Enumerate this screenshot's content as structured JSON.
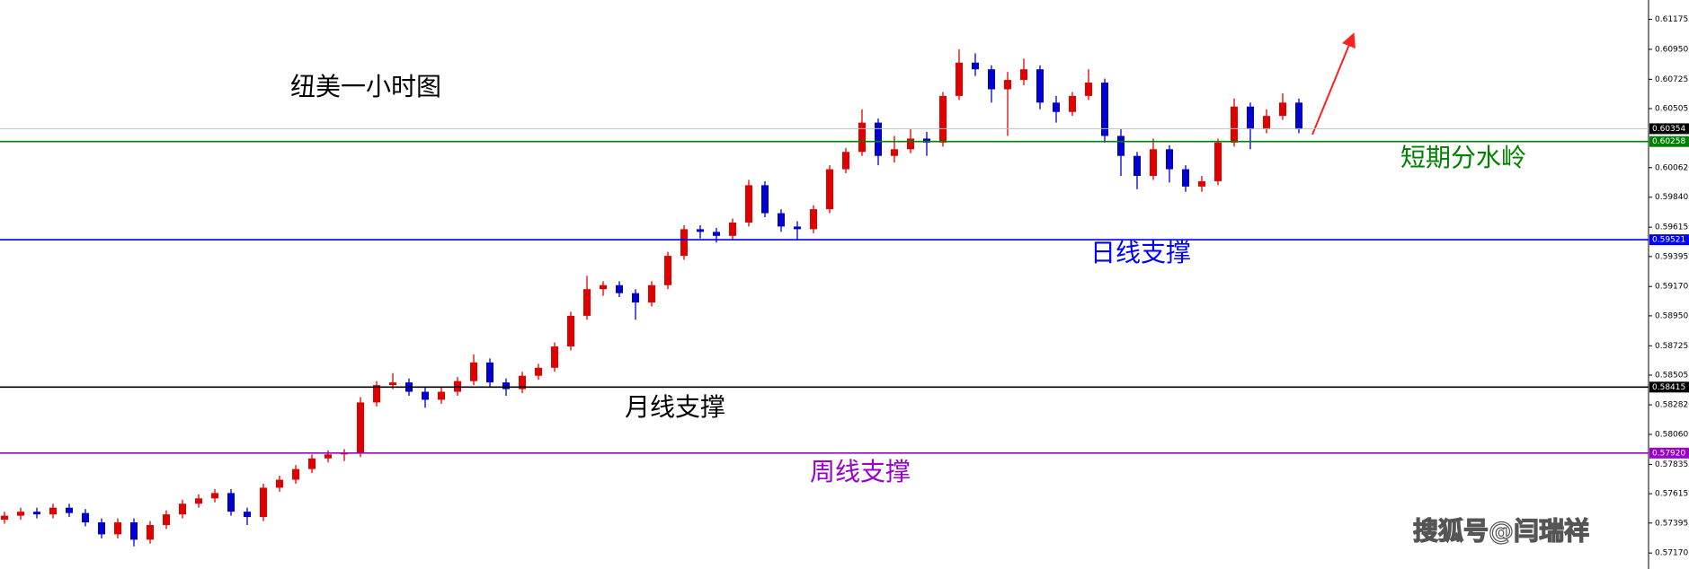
{
  "chart_data": {
    "type": "candlestick",
    "title": "纽美一小时图",
    "watermark": "搜狐号@闫瑞祥",
    "up_color": "#e00000",
    "down_color": "#0000d0",
    "ylim": [
      0.5705,
      0.6132
    ],
    "yticks": [
      0.61175,
      {
        "value": 0.6095,
        "label": "0.60950"
      },
      0.60725,
      0.60505,
      0.60062,
      {
        "value": 0.5984,
        "label": "0.59840"
      },
      0.59615,
      0.59395,
      {
        "value": 0.5917,
        "label": "0.59170"
      },
      {
        "value": 0.5895,
        "label": "0.58950"
      },
      0.58725,
      0.58505,
      0.58282,
      {
        "value": 0.5806,
        "label": "0.58060"
      },
      0.57835,
      0.57615,
      0.57395,
      {
        "value": 0.5717,
        "label": "0.57170"
      }
    ],
    "levels": [
      {
        "value": 0.60354,
        "color": "#000000"
      },
      {
        "value": 0.60258,
        "color": "#008000",
        "text": "短期分水岭"
      },
      {
        "value": 0.59521,
        "color": "#0000ff",
        "text": "日线支撑"
      },
      {
        "value": 0.58415,
        "color": "#000000",
        "text": "月线支撑"
      },
      {
        "value": 0.5792,
        "label": "0.57920",
        "color": "#9900cc",
        "text": "周线支撑"
      }
    ],
    "open": [
      0.5742,
      0.5745,
      0.5748,
      0.5746,
      0.5751,
      0.5747,
      0.574,
      0.5731,
      0.574,
      0.5727,
      0.5738,
      0.5746,
      0.5754,
      0.5758,
      0.5762,
      0.5748,
      0.5744,
      0.5766,
      0.5772,
      0.578,
      0.5788,
      0.5791,
      0.5792,
      0.583,
      0.5843,
      0.5845,
      0.5838,
      0.5832,
      0.5838,
      0.5846,
      0.586,
      0.5845,
      0.584,
      0.585,
      0.5856,
      0.5872,
      0.5895,
      0.5915,
      0.5918,
      0.5912,
      0.5905,
      0.5918,
      0.594,
      0.596,
      0.5958,
      0.5955,
      0.5965,
      0.5993,
      0.5972,
      0.5962,
      0.596,
      0.5975,
      0.6005,
      0.6018,
      0.604,
      0.6015,
      0.602,
      0.6028,
      0.6025,
      0.606,
      0.6085,
      0.608,
      0.6065,
      0.6072,
      0.608,
      0.6055,
      0.6048,
      0.606,
      0.607,
      0.603,
      0.6015,
      0.6,
      0.602,
      0.6005,
      0.5992,
      0.5996,
      0.6025,
      0.6052,
      0.6035,
      0.6045,
      0.6055
    ],
    "high": [
      0.5748,
      0.5751,
      0.5751,
      0.5754,
      0.5754,
      0.575,
      0.5743,
      0.5743,
      0.5743,
      0.5741,
      0.5749,
      0.5757,
      0.5761,
      0.5765,
      0.5765,
      0.5751,
      0.5769,
      0.5775,
      0.5783,
      0.5791,
      0.5794,
      0.5795,
      0.5834,
      0.5846,
      0.5852,
      0.5848,
      0.5841,
      0.5841,
      0.5849,
      0.5866,
      0.5863,
      0.5848,
      0.5853,
      0.5859,
      0.5875,
      0.5898,
      0.5925,
      0.5921,
      0.5921,
      0.5915,
      0.5921,
      0.5943,
      0.5963,
      0.5963,
      0.5961,
      0.5968,
      0.5997,
      0.5996,
      0.5975,
      0.5966,
      0.5978,
      0.6008,
      0.6021,
      0.605,
      0.6043,
      0.603,
      0.6035,
      0.6033,
      0.6063,
      0.6095,
      0.6092,
      0.6083,
      0.6078,
      0.6088,
      0.6083,
      0.606,
      0.6063,
      0.608,
      0.6073,
      0.6035,
      0.6018,
      0.6028,
      0.6023,
      0.6008,
      0.6,
      0.6028,
      0.6058,
      0.6055,
      0.605,
      0.6062,
      0.6058
    ],
    "low": [
      0.5739,
      0.5742,
      0.5743,
      0.5743,
      0.5744,
      0.5737,
      0.5728,
      0.5728,
      0.5722,
      0.5724,
      0.5735,
      0.5743,
      0.5751,
      0.5755,
      0.5745,
      0.5738,
      0.5741,
      0.5763,
      0.5769,
      0.5777,
      0.5785,
      0.5786,
      0.5789,
      0.5827,
      0.584,
      0.5835,
      0.5826,
      0.5829,
      0.5835,
      0.5843,
      0.5842,
      0.5835,
      0.5837,
      0.5847,
      0.5853,
      0.5869,
      0.5892,
      0.591,
      0.5909,
      0.5892,
      0.5902,
      0.5915,
      0.5937,
      0.5953,
      0.595,
      0.5952,
      0.5962,
      0.5969,
      0.5958,
      0.5952,
      0.5957,
      0.5972,
      0.6002,
      0.6015,
      0.6008,
      0.601,
      0.6017,
      0.6015,
      0.6022,
      0.6057,
      0.6075,
      0.6055,
      0.603,
      0.6068,
      0.605,
      0.604,
      0.6045,
      0.6057,
      0.6025,
      0.6,
      0.599,
      0.5997,
      0.5995,
      0.5988,
      0.5988,
      0.5993,
      0.6022,
      0.602,
      0.6032,
      0.6042,
      0.6032
    ],
    "close": [
      0.5745,
      0.5748,
      0.5746,
      0.5751,
      0.5747,
      0.574,
      0.5731,
      0.574,
      0.5727,
      0.5738,
      0.5746,
      0.5754,
      0.5758,
      0.5762,
      0.5748,
      0.5744,
      0.5766,
      0.5772,
      0.578,
      0.5788,
      0.5791,
      0.5792,
      0.583,
      0.5843,
      0.5845,
      0.5838,
      0.5832,
      0.5838,
      0.5846,
      0.586,
      0.5845,
      0.584,
      0.585,
      0.5856,
      0.5872,
      0.5895,
      0.5915,
      0.5918,
      0.5912,
      0.5905,
      0.5918,
      0.594,
      0.596,
      0.5958,
      0.5955,
      0.5965,
      0.5993,
      0.5972,
      0.5962,
      0.596,
      0.5975,
      0.6005,
      0.6018,
      0.604,
      0.6015,
      0.602,
      0.6028,
      0.6025,
      0.606,
      0.6085,
      0.608,
      0.6065,
      0.6072,
      0.608,
      0.6055,
      0.6048,
      0.606,
      0.607,
      0.603,
      0.6015,
      0.6,
      0.602,
      0.6005,
      0.5992,
      0.5996,
      0.6025,
      0.6052,
      0.6035,
      0.6045,
      0.6055,
      0.6035
    ]
  }
}
